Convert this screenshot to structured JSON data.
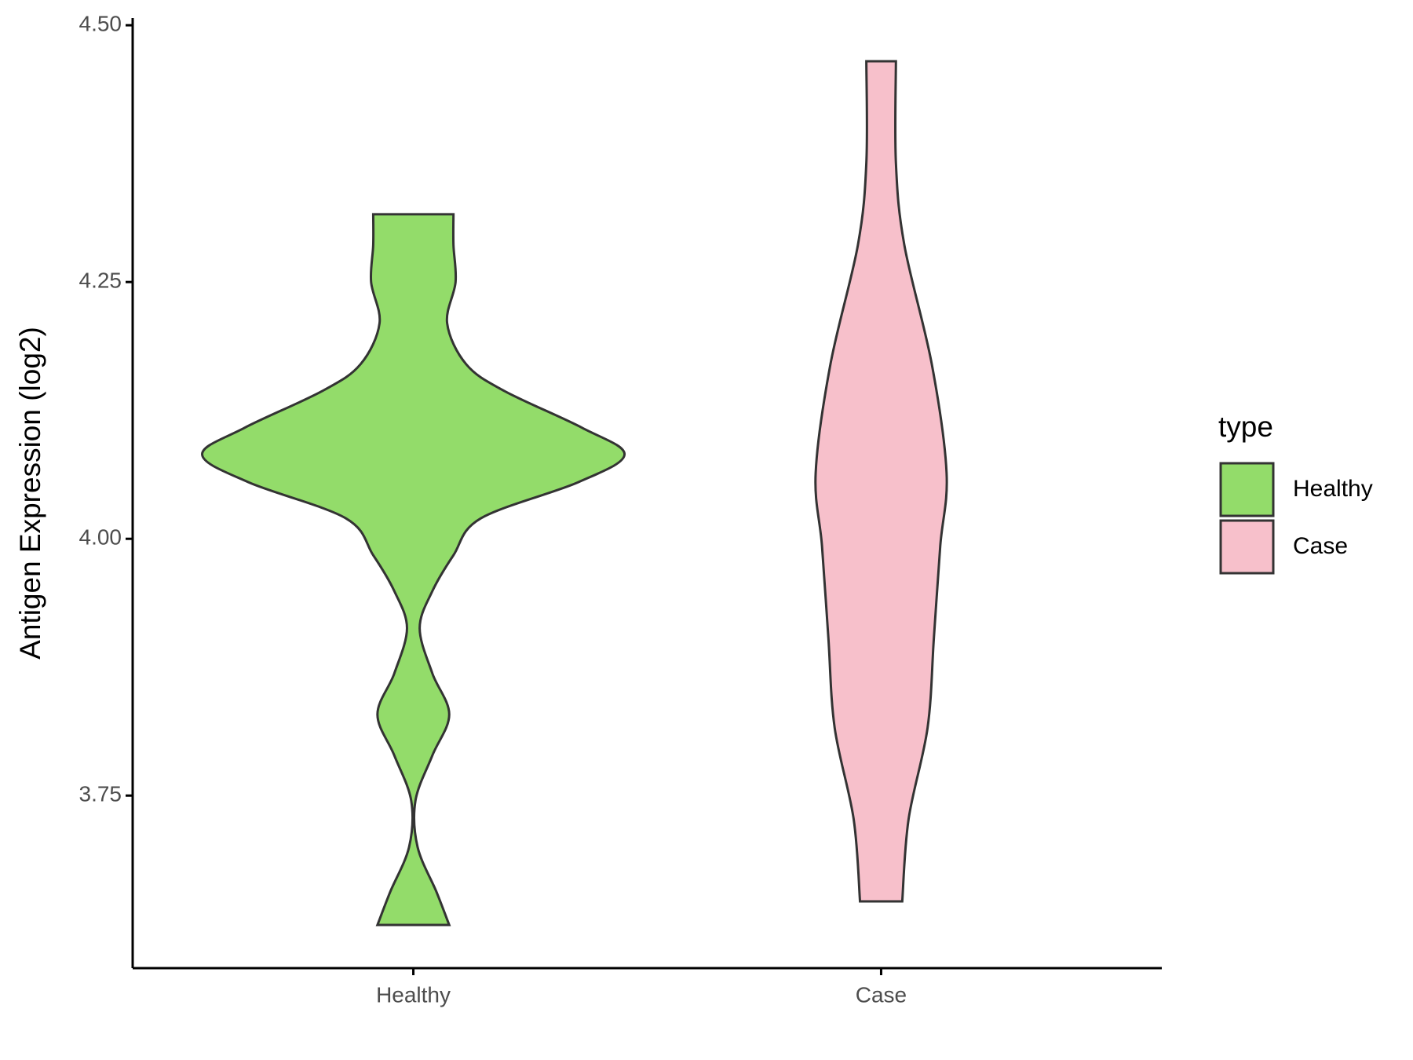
{
  "chart_data": {
    "type": "violin",
    "ylabel": "Antigen Expression (log2)",
    "categories": [
      "Healthy",
      "Case"
    ],
    "legend_title": "type",
    "ylim": [
      3.582,
      4.507
    ],
    "yticks": [
      {
        "value": 3.75,
        "label": "3.75"
      },
      {
        "value": 4,
        "label": "4.00"
      },
      {
        "value": 4.25,
        "label": "4.25"
      },
      {
        "value": 4.5,
        "label": "4.50"
      }
    ],
    "series": [
      {
        "name": "Healthy",
        "color": "#93dc6a",
        "y": [
          4.316,
          4.286,
          4.25,
          4.21,
          4.17,
          4.144,
          4.108,
          4.082,
          4.055,
          4.02,
          3.984,
          3.949,
          3.913,
          3.869,
          3.829,
          3.789,
          3.745,
          3.7,
          3.656,
          3.624
        ],
        "density": [
          0.19,
          0.19,
          0.2,
          0.16,
          0.25,
          0.43,
          0.8,
          1,
          0.78,
          0.32,
          0.19,
          0.09,
          0.03,
          0.09,
          0.17,
          0.09,
          0.01,
          0.02,
          0.11,
          0.17
        ]
      },
      {
        "name": "Case",
        "color": "#f7c0cb",
        "y": [
          4.465,
          4.366,
          4.286,
          4.17,
          4.064,
          3.993,
          3.904,
          3.816,
          3.727,
          3.647
        ],
        "density": [
          0.07,
          0.07,
          0.11,
          0.24,
          0.31,
          0.28,
          0.25,
          0.22,
          0.13,
          0.1
        ]
      }
    ]
  }
}
